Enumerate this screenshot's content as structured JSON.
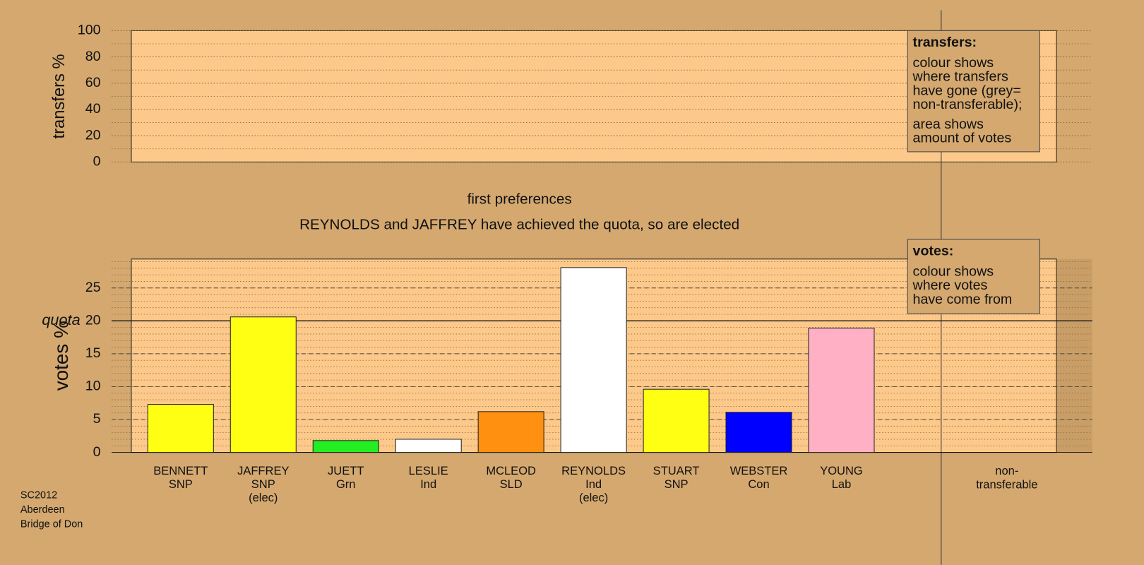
{
  "chart_data": [
    {
      "type": "empty",
      "ylabel": "transfers %",
      "ylim": [
        0,
        100
      ],
      "yticks": [
        0,
        20,
        40,
        60,
        80,
        100
      ],
      "grid": true,
      "note": {
        "title": "transfers:",
        "paragraphs": [
          [
            "colour shows",
            "where transfers",
            "have gone (grey=",
            "non-transferable);"
          ],
          [
            "area shows",
            "amount of votes"
          ]
        ]
      }
    },
    {
      "type": "bar",
      "title": "first preferences",
      "subtitle": "REYNOLDS and JAFFREY have achieved the quota, so are elected",
      "ylabel": "votes %",
      "ylim": [
        0,
        29.4
      ],
      "yticks": [
        0,
        5,
        10,
        15,
        20,
        25
      ],
      "grid": true,
      "quota": {
        "value": 20,
        "label": "quota"
      },
      "categories": [
        [
          "BENNETT",
          "SNP"
        ],
        [
          "JAFFREY",
          "SNP",
          "(elec)"
        ],
        [
          "JUETT",
          "Grn"
        ],
        [
          "LESLIE",
          "Ind"
        ],
        [
          "MCLEOD",
          "SLD"
        ],
        [
          "REYNOLDS",
          "Ind",
          "(elec)"
        ],
        [
          "STUART",
          "SNP"
        ],
        [
          "WEBSTER",
          "Con"
        ],
        [
          "YOUNG",
          "Lab"
        ]
      ],
      "values": [
        7.3,
        20.6,
        1.8,
        2.0,
        6.2,
        28.1,
        9.6,
        6.1,
        18.9
      ],
      "colors": [
        "#ffff14",
        "#ffff14",
        "#22ee22",
        "#ffffff",
        "#ff9010",
        "#ffffff",
        "#ffff14",
        "#0000ff",
        "#ffb0c4"
      ],
      "nontransferable_label": [
        "non-",
        "transferable"
      ],
      "note": {
        "title": "votes:",
        "paragraphs": [
          [
            "colour shows",
            "where votes",
            "have come from"
          ]
        ]
      }
    }
  ],
  "footer": [
    "SC2012",
    "Aberdeen",
    "Bridge of Don"
  ]
}
